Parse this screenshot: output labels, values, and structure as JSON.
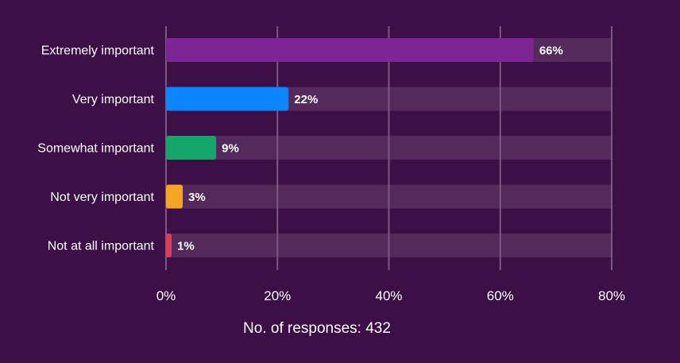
{
  "chart_data": {
    "type": "bar",
    "orientation": "horizontal",
    "categories": [
      "Extremely important",
      "Very important",
      "Somewhat important",
      "Not very important",
      "Not at all important"
    ],
    "values": [
      66,
      22,
      9,
      3,
      1
    ],
    "value_labels": [
      "66%",
      "22%",
      "9%",
      "3%",
      "1%"
    ],
    "colors": [
      "#7e2494",
      "#0a84ff",
      "#14a76a",
      "#f4a521",
      "#e03c57"
    ],
    "xlim": [
      0,
      80
    ],
    "x_ticks": [
      0,
      20,
      40,
      60,
      80
    ],
    "x_tick_labels": [
      "0%",
      "20%",
      "40%",
      "60%",
      "80%"
    ],
    "grid": true,
    "footer": "No. of responses: 432"
  },
  "theme": {
    "background": "#3c1047",
    "track": "#54295c",
    "gridline": "#7a5a82"
  }
}
